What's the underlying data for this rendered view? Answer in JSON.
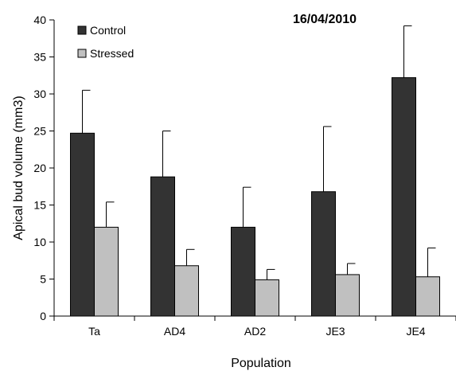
{
  "chart_data": {
    "type": "bar",
    "title": "16/04/2010",
    "xlabel": "Population",
    "ylabel": "Apical bud volume (mm3)",
    "ylim": [
      0,
      40
    ],
    "yticks": [
      0,
      5,
      10,
      15,
      20,
      25,
      30,
      35,
      40
    ],
    "categories": [
      "Ta",
      "AD4",
      "AD2",
      "JE3",
      "JE4"
    ],
    "series": [
      {
        "name": "Control",
        "color": "#333333",
        "values": [
          24.7,
          18.8,
          12.0,
          16.8,
          32.2
        ],
        "errors": [
          5.8,
          6.2,
          5.4,
          8.8,
          7.0
        ]
      },
      {
        "name": "Stressed",
        "color": "#c0c0c0",
        "values": [
          12.0,
          6.8,
          4.9,
          5.6,
          5.3
        ],
        "errors": [
          3.4,
          2.2,
          1.4,
          1.5,
          3.9
        ]
      }
    ],
    "legend_position": "top-left",
    "grid": false
  }
}
